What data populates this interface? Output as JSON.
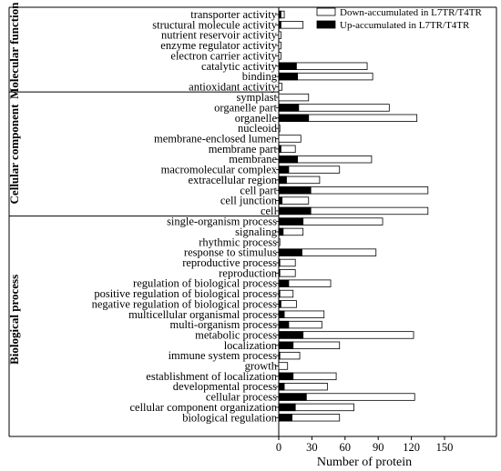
{
  "chart_data": {
    "type": "bar",
    "orientation": "horizontal",
    "xlabel": "Number of protein",
    "xlim": [
      0,
      150
    ],
    "xticks": [
      0,
      30,
      60,
      90,
      120,
      150
    ],
    "legend": {
      "placement": "top-right",
      "entries": [
        {
          "label": "Down-accumulated in L7TR/T4TR",
          "color": "#ffffff"
        },
        {
          "label": "Up-accumulated in L7TR/T4TR",
          "color": "#000000"
        }
      ]
    },
    "series": [
      {
        "name": "Down-accumulated in L7TR/T4TR",
        "color": "#ffffff"
      },
      {
        "name": "Up-accumulated in L7TR/T4TR",
        "color": "#000000"
      }
    ],
    "groups": [
      {
        "name": "Molecular function",
        "categories": [
          {
            "label": "transporter activity",
            "down": 5,
            "up": 2
          },
          {
            "label": "structural molecule activity",
            "down": 22,
            "up": 2
          },
          {
            "label": "nutrient reservoir activity",
            "down": 2,
            "up": 0
          },
          {
            "label": "enzyme regulator activity",
            "down": 2,
            "up": 0
          },
          {
            "label": "electron carrier activity",
            "down": 2,
            "up": 0
          },
          {
            "label": "catalytic activity",
            "down": 80,
            "up": 16
          },
          {
            "label": "binding",
            "down": 85,
            "up": 17
          },
          {
            "label": "antioxidant activity",
            "down": 3,
            "up": 0
          }
        ]
      },
      {
        "name": "Cellular component",
        "categories": [
          {
            "label": "symplast",
            "down": 27,
            "up": 0
          },
          {
            "label": "organelle part",
            "down": 100,
            "up": 18
          },
          {
            "label": "organelle",
            "down": 125,
            "up": 27
          },
          {
            "label": "nucleoid",
            "down": 1,
            "up": 0
          },
          {
            "label": "membrane-enclosed lumen",
            "down": 20,
            "up": 0
          },
          {
            "label": "membrane part",
            "down": 15,
            "up": 2
          },
          {
            "label": "membrane",
            "down": 84,
            "up": 17
          },
          {
            "label": "macromolecular complex",
            "down": 55,
            "up": 9
          },
          {
            "label": "extracellular region",
            "down": 37,
            "up": 7
          },
          {
            "label": "cell part",
            "down": 135,
            "up": 29
          },
          {
            "label": "cell junction",
            "down": 27,
            "up": 3
          },
          {
            "label": "cell",
            "down": 135,
            "up": 29
          }
        ]
      },
      {
        "name": "Biological process",
        "categories": [
          {
            "label": "single-organism process",
            "down": 94,
            "up": 22
          },
          {
            "label": "signaling",
            "down": 22,
            "up": 4
          },
          {
            "label": "rhythmic process",
            "down": 1,
            "up": 0
          },
          {
            "label": "response to stimulus",
            "down": 88,
            "up": 21
          },
          {
            "label": "reproductive process",
            "down": 15,
            "up": 1
          },
          {
            "label": "reproduction",
            "down": 15,
            "up": 1
          },
          {
            "label": "regulation of biological process",
            "down": 47,
            "up": 9
          },
          {
            "label": "positive regulation of biological process",
            "down": 13,
            "up": 1
          },
          {
            "label": "negative regulation of biological process",
            "down": 16,
            "up": 2
          },
          {
            "label": "multicellular organismal process",
            "down": 41,
            "up": 5
          },
          {
            "label": "multi-organism process",
            "down": 39,
            "up": 9
          },
          {
            "label": "metabolic process",
            "down": 122,
            "up": 22
          },
          {
            "label": "localization",
            "down": 55,
            "up": 13
          },
          {
            "label": "immune system process",
            "down": 19,
            "up": 1
          },
          {
            "label": "growth",
            "down": 8,
            "up": 0
          },
          {
            "label": "establishment of localization",
            "down": 52,
            "up": 13
          },
          {
            "label": "developmental process",
            "down": 44,
            "up": 5
          },
          {
            "label": "cellular process",
            "down": 123,
            "up": 25
          },
          {
            "label": "cellular component organization",
            "down": 68,
            "up": 15
          },
          {
            "label": "biological regulation",
            "down": 55,
            "up": 12
          }
        ]
      }
    ]
  }
}
